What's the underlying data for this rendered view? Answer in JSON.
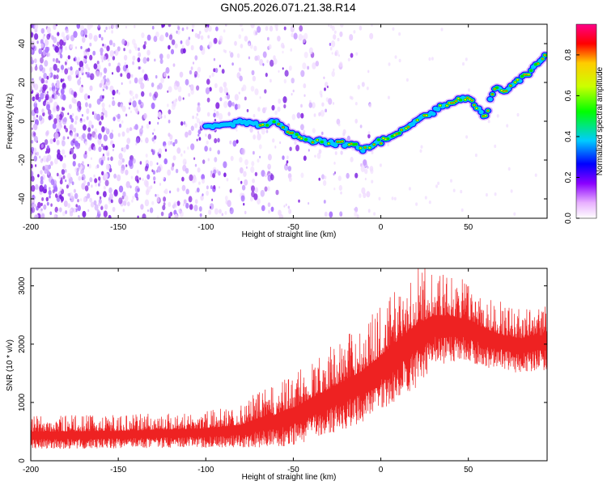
{
  "title": "GN05.2026.071.21.38.R14",
  "colors": {
    "background": "#ffffff",
    "noise": "#8a2be2",
    "snr_line": "#ee2222"
  },
  "chart_data": [
    {
      "type": "heatmap",
      "name": "spectrogram",
      "xlabel": "Height of straight line (km)",
      "ylabel": "Frequency (Hz)",
      "xlim": [
        -200,
        95
      ],
      "ylim": [
        -50,
        50
      ],
      "xticks": [
        -200,
        -150,
        -100,
        -50,
        0,
        50
      ],
      "yticks": [
        -40,
        -20,
        0,
        20,
        40
      ],
      "colorbar": {
        "label": "Normalized spectral amplitude",
        "range": [
          0,
          0.95
        ],
        "ticks": [
          0.0,
          0.2,
          0.4,
          0.6,
          0.8
        ]
      },
      "trace": {
        "x": [
          -100,
          -90,
          -80,
          -70,
          -60,
          -50,
          -40,
          -30,
          -20,
          -10,
          0,
          10,
          20,
          30,
          40,
          50,
          60,
          65,
          70,
          80,
          90,
          95
        ],
        "y": [
          -3,
          -2,
          0,
          -2,
          0,
          -7,
          -10,
          -12,
          -11,
          -15,
          -10,
          -6,
          0,
          5,
          10,
          12,
          2,
          18,
          15,
          22,
          30,
          35
        ]
      },
      "noise_band": {
        "x_start": -200,
        "x_end": -40,
        "y_range": [
          -50,
          50
        ]
      }
    },
    {
      "type": "line",
      "name": "snr",
      "xlabel": "Height of straight line (km)",
      "ylabel": "SNR (10 * v/v)",
      "xlim": [
        -200,
        95
      ],
      "ylim": [
        0,
        3300
      ],
      "xticks": [
        -200,
        -150,
        -100,
        -50,
        0,
        50
      ],
      "yticks": [
        0,
        1000,
        2000,
        3000
      ],
      "series": [
        {
          "name": "SNR",
          "x": [
            -200,
            -150,
            -100,
            -80,
            -70,
            -60,
            -50,
            -40,
            -30,
            -20,
            -10,
            0,
            10,
            20,
            30,
            40,
            50,
            60,
            70,
            80,
            90,
            95
          ],
          "mean": [
            450,
            460,
            500,
            550,
            650,
            700,
            800,
            950,
            1100,
            1250,
            1400,
            1650,
            1900,
            2150,
            2350,
            2350,
            2300,
            2150,
            2050,
            2000,
            2050,
            2050
          ],
          "spread": [
            500,
            500,
            550,
            650,
            850,
            900,
            1100,
            1200,
            1300,
            1400,
            1500,
            1600,
            1700,
            1800,
            1500,
            1300,
            1200,
            1100,
            1000,
            1000,
            1000,
            1000
          ]
        }
      ]
    }
  ]
}
